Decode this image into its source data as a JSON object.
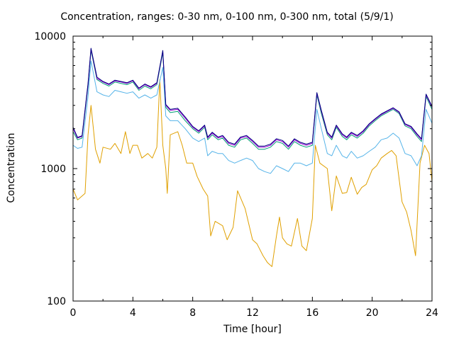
{
  "chart_data": {
    "type": "line",
    "title": "Concentration, ranges: 0-30 nm, 0-100 nm, 0-300 nm, total (5/9/1)",
    "xlabel": "Time [hour]",
    "ylabel": "Concentration",
    "xlim": [
      0,
      24
    ],
    "ylim": [
      100,
      10000
    ],
    "yscale": "log",
    "grid": false,
    "legend": "none",
    "x_ticks": [
      0,
      4,
      8,
      12,
      16,
      20,
      24
    ],
    "y_ticks": [
      100,
      1000,
      10000
    ],
    "x_tick_labels": [
      "0",
      "4",
      "8",
      "12",
      "16",
      "20",
      "24"
    ],
    "y_tick_labels": [
      "100",
      "1000",
      "10000"
    ],
    "series": [
      {
        "color": "#e0a000",
        "x": [
          0,
          0.3,
          0.8,
          1.0,
          1.2,
          1.5,
          1.8,
          2.0,
          2.5,
          2.8,
          3.2,
          3.5,
          3.8,
          4.0,
          4.3,
          4.6,
          5.0,
          5.3,
          5.6,
          5.8,
          6.0,
          6.2,
          6.3,
          6.5,
          7.0,
          7.3,
          7.6,
          8.0,
          8.3,
          8.7,
          9.0,
          9.2,
          9.5,
          10.0,
          10.3,
          10.7,
          11.0,
          11.5,
          12.0,
          12.3,
          12.7,
          13.0,
          13.3,
          13.6,
          13.8,
          14.0,
          14.3,
          14.6,
          15.0,
          15.3,
          15.6,
          16.0,
          16.2,
          16.5,
          17.0,
          17.3,
          17.6,
          18.0,
          18.3,
          18.6,
          19.0,
          19.3,
          19.6,
          20.0,
          20.3,
          20.6,
          21.0,
          21.3,
          21.6,
          22.0,
          22.3,
          22.6,
          22.9,
          23.2,
          23.5,
          23.8,
          24.0
        ],
        "values": [
          700,
          580,
          650,
          1800,
          3000,
          1400,
          1100,
          1450,
          1400,
          1550,
          1300,
          1900,
          1300,
          1500,
          1500,
          1200,
          1300,
          1200,
          1450,
          4700,
          1500,
          1000,
          650,
          1800,
          1900,
          1500,
          1100,
          1100,
          870,
          700,
          620,
          310,
          400,
          370,
          290,
          360,
          680,
          500,
          290,
          270,
          220,
          195,
          182,
          310,
          430,
          300,
          270,
          260,
          420,
          260,
          240,
          420,
          1500,
          1100,
          1000,
          480,
          880,
          650,
          660,
          860,
          640,
          720,
          760,
          980,
          1050,
          1200,
          1300,
          1370,
          1250,
          560,
          470,
          340,
          220,
          1100,
          1500,
          1300,
          800
        ]
      },
      {
        "color": "#56b4e9",
        "x": [
          0,
          0.3,
          0.6,
          1.0,
          1.2,
          1.6,
          2.0,
          2.4,
          2.8,
          3.2,
          3.6,
          4.0,
          4.4,
          4.8,
          5.2,
          5.6,
          6.0,
          6.2,
          6.5,
          7.0,
          7.5,
          8.0,
          8.4,
          8.8,
          9.0,
          9.3,
          9.7,
          10.0,
          10.4,
          10.8,
          11.2,
          11.6,
          12.0,
          12.4,
          12.8,
          13.2,
          13.6,
          14.0,
          14.4,
          14.8,
          15.2,
          15.6,
          16.0,
          16.3,
          16.6,
          17.0,
          17.3,
          17.6,
          18.0,
          18.3,
          18.6,
          19.0,
          19.4,
          19.8,
          20.2,
          20.6,
          21.0,
          21.4,
          21.8,
          22.2,
          22.6,
          23.0,
          23.3,
          23.6,
          24.0
        ],
        "values": [
          1500,
          1420,
          1450,
          3500,
          6500,
          3800,
          3600,
          3500,
          3900,
          3800,
          3700,
          3800,
          3400,
          3600,
          3400,
          3600,
          5800,
          2500,
          2300,
          2300,
          2000,
          1700,
          1600,
          1700,
          1250,
          1350,
          1300,
          1300,
          1150,
          1100,
          1150,
          1200,
          1150,
          1000,
          950,
          920,
          1050,
          1000,
          950,
          1100,
          1100,
          1050,
          1100,
          2800,
          2000,
          1300,
          1250,
          1500,
          1250,
          1200,
          1350,
          1200,
          1250,
          1350,
          1450,
          1650,
          1700,
          1850,
          1700,
          1300,
          1250,
          1050,
          1250,
          2800,
          2200
        ]
      },
      {
        "color": "#009e73",
        "x": [
          0,
          0.3,
          0.6,
          1.0,
          1.2,
          1.6,
          2.0,
          2.4,
          2.8,
          3.2,
          3.6,
          4.0,
          4.4,
          4.8,
          5.2,
          5.6,
          6.0,
          6.2,
          6.5,
          7.0,
          7.5,
          8.0,
          8.4,
          8.8,
          9.0,
          9.3,
          9.7,
          10.0,
          10.4,
          10.8,
          11.2,
          11.6,
          12.0,
          12.4,
          12.8,
          13.2,
          13.6,
          14.0,
          14.4,
          14.8,
          15.2,
          15.6,
          16.0,
          16.3,
          16.6,
          17.0,
          17.3,
          17.6,
          18.0,
          18.3,
          18.6,
          19.0,
          19.4,
          19.8,
          20.2,
          20.6,
          21.0,
          21.4,
          21.8,
          22.2,
          22.6,
          23.0,
          23.3,
          23.6,
          24.0
        ],
        "values": [
          1900,
          1650,
          1700,
          4200,
          7800,
          4700,
          4400,
          4200,
          4500,
          4400,
          4300,
          4500,
          3900,
          4200,
          4000,
          4300,
          7500,
          2900,
          2650,
          2700,
          2300,
          2000,
          1850,
          2050,
          1650,
          1800,
          1650,
          1700,
          1500,
          1450,
          1650,
          1700,
          1550,
          1400,
          1400,
          1450,
          1600,
          1550,
          1400,
          1600,
          1500,
          1450,
          1500,
          3600,
          2600,
          1800,
          1650,
          2050,
          1750,
          1650,
          1800,
          1700,
          1850,
          2100,
          2300,
          2500,
          2650,
          2800,
          2600,
          2100,
          2000,
          1750,
          1600,
          3500,
          2800
        ]
      },
      {
        "color": "#9400d3",
        "x": [
          0,
          0.3,
          0.6,
          1.0,
          1.2,
          1.6,
          2.0,
          2.4,
          2.8,
          3.2,
          3.6,
          4.0,
          4.4,
          4.8,
          5.2,
          5.6,
          6.0,
          6.2,
          6.5,
          7.0,
          7.5,
          8.0,
          8.4,
          8.8,
          9.0,
          9.3,
          9.7,
          10.0,
          10.4,
          10.8,
          11.2,
          11.6,
          12.0,
          12.4,
          12.8,
          13.2,
          13.6,
          14.0,
          14.4,
          14.8,
          15.2,
          15.6,
          16.0,
          16.3,
          16.6,
          17.0,
          17.3,
          17.6,
          18.0,
          18.3,
          18.6,
          19.0,
          19.4,
          19.8,
          20.2,
          20.6,
          21.0,
          21.4,
          21.8,
          22.2,
          22.6,
          23.0,
          23.3,
          23.6,
          24.0
        ],
        "values": [
          2000,
          1700,
          1750,
          4300,
          8000,
          4800,
          4500,
          4300,
          4600,
          4500,
          4400,
          4600,
          4000,
          4300,
          4100,
          4400,
          7700,
          3000,
          2750,
          2800,
          2400,
          2050,
          1900,
          2100,
          1700,
          1850,
          1700,
          1750,
          1550,
          1500,
          1700,
          1750,
          1600,
          1450,
          1450,
          1500,
          1650,
          1600,
          1450,
          1650,
          1550,
          1500,
          1550,
          3700,
          2700,
          1850,
          1700,
          2100,
          1800,
          1700,
          1850,
          1750,
          1900,
          2150,
          2350,
          2550,
          2700,
          2850,
          2650,
          2150,
          2050,
          1800,
          1650,
          3600,
          2900
        ]
      },
      {
        "color": "#000080",
        "x": [
          0,
          0.3,
          0.6,
          1.0,
          1.2,
          1.6,
          2.0,
          2.4,
          2.8,
          3.2,
          3.6,
          4.0,
          4.4,
          4.8,
          5.2,
          5.6,
          6.0,
          6.2,
          6.5,
          7.0,
          7.5,
          8.0,
          8.4,
          8.8,
          9.0,
          9.3,
          9.7,
          10.0,
          10.4,
          10.8,
          11.2,
          11.6,
          12.0,
          12.4,
          12.8,
          13.2,
          13.6,
          14.0,
          14.4,
          14.8,
          15.2,
          15.6,
          16.0,
          16.3,
          16.6,
          17.0,
          17.3,
          17.6,
          18.0,
          18.3,
          18.6,
          19.0,
          19.4,
          19.8,
          20.2,
          20.6,
          21.0,
          21.4,
          21.8,
          22.2,
          22.6,
          23.0,
          23.3,
          23.6,
          24.0
        ],
        "values": [
          2050,
          1720,
          1770,
          4400,
          8100,
          4900,
          4550,
          4350,
          4650,
          4550,
          4450,
          4650,
          4050,
          4350,
          4150,
          4450,
          7800,
          3050,
          2800,
          2850,
          2450,
          2080,
          1930,
          2130,
          1730,
          1880,
          1730,
          1780,
          1580,
          1530,
          1730,
          1780,
          1630,
          1480,
          1480,
          1530,
          1680,
          1630,
          1480,
          1680,
          1580,
          1530,
          1580,
          3750,
          2750,
          1880,
          1730,
          2130,
          1830,
          1730,
          1880,
          1780,
          1930,
          2180,
          2380,
          2580,
          2730,
          2880,
          2680,
          2180,
          2080,
          1830,
          1680,
          3650,
          2950
        ]
      }
    ]
  }
}
